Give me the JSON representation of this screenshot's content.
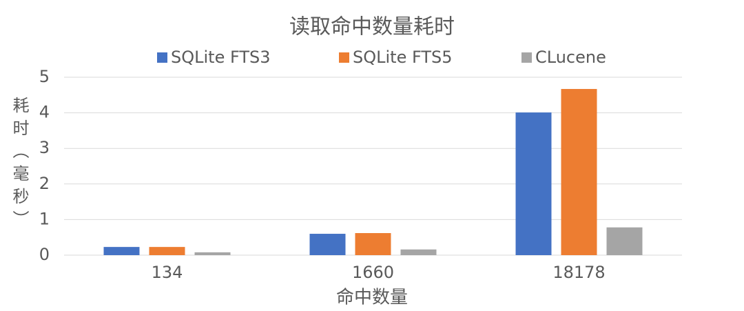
{
  "chart_data": {
    "type": "bar",
    "title": "读取命中数量耗时",
    "x_label": "命中数量",
    "y_label": "耗时（毫秒）",
    "categories": [
      "134",
      "1660",
      "18178"
    ],
    "series": [
      {
        "name": "SQLite FTS3",
        "color": "#4472c4",
        "values": [
          0.23,
          0.6,
          4.01
        ]
      },
      {
        "name": "SQLite FTS5",
        "color": "#ed7d31",
        "values": [
          0.23,
          0.62,
          4.67
        ]
      },
      {
        "name": "CLucene",
        "color": "#a5a5a5",
        "values": [
          0.08,
          0.16,
          0.78
        ]
      }
    ],
    "ylim": [
      0,
      5
    ],
    "yticks": [
      0,
      1,
      2,
      3,
      4,
      5
    ],
    "grid": true,
    "legend": "top"
  }
}
